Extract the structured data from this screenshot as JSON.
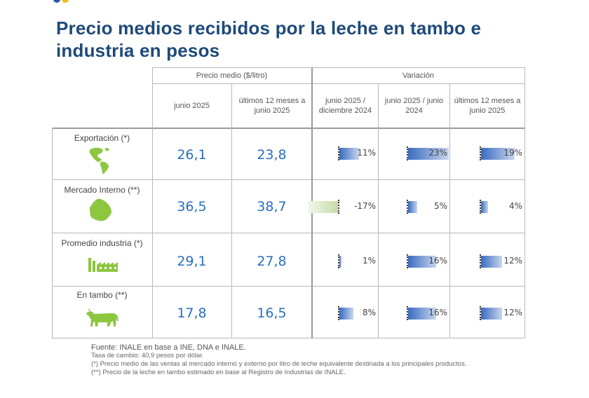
{
  "title": "Precio medios recibidos por la leche en tambo e industria en pesos",
  "header": {
    "group_price": "Precio medio ($/litro)",
    "group_variation": "Variación",
    "col_jun2025": "junio 2025",
    "col_last12": "últimos 12 meses a junio 2025",
    "col_var_dec": "junio 2025 / diciembre 2024",
    "col_var_jun": "junio 2025 / junio 2024",
    "col_var_12m": "últimos 12 meses a junio 2025"
  },
  "rows": [
    {
      "label": "Exportación (*)",
      "icon": "americas-map-icon",
      "jun2025": "26,1",
      "last12": "23,8",
      "var_dec": "11%",
      "var_jun": "23%",
      "var_12m": "19%"
    },
    {
      "label": "Mercado Interno (**)",
      "icon": "uruguay-map-icon",
      "jun2025": "36,5",
      "last12": "38,7",
      "var_dec": "-17%",
      "var_jun": "5%",
      "var_12m": "4%"
    },
    {
      "label": "Promedio industria (*)",
      "icon": "factory-icon",
      "jun2025": "29,1",
      "last12": "27,8",
      "var_dec": "1%",
      "var_jun": "16%",
      "var_12m": "12%"
    },
    {
      "label": "En tambo (**)",
      "icon": "cow-icon",
      "jun2025": "17,8",
      "last12": "16,5",
      "var_dec": "8%",
      "var_jun": "16%",
      "var_12m": "12%"
    }
  ],
  "notes": {
    "source": "Fuente: INALE en base a INE, DNA e INALE.",
    "exchange": "Tasa de cambio: 40,9 pesos por dólar.",
    "note1": "(*) Precio medio de las ventas al mercado interno y externo por litro de leche equivalente destinada a los principales productos.",
    "note2": "(**) Precio de la leche en tambo estimado en base al Registro de Industrias de INALE."
  },
  "colors": {
    "title": "#1e4a7a",
    "value": "#2a6fc0",
    "bar_pos": "#3a6bc0",
    "bar_neg": "#c6dba8",
    "icon_green": "#8dc63f"
  },
  "chart_data": {
    "type": "table",
    "title": "Precio medios recibidos por la leche en tambo e industria en pesos",
    "categories": [
      "Exportación (*)",
      "Mercado Interno (**)",
      "Promedio industria (*)",
      "En tambo (**)"
    ],
    "series": [
      {
        "name": "junio 2025",
        "unit": "$/litro",
        "values": [
          26.1,
          36.5,
          29.1,
          17.8
        ]
      },
      {
        "name": "últimos 12 meses a junio 2025",
        "unit": "$/litro",
        "values": [
          23.8,
          38.7,
          27.8,
          16.5
        ]
      },
      {
        "name": "Variación junio 2025 / diciembre 2024",
        "unit": "%",
        "values": [
          11,
          -17,
          1,
          8
        ]
      },
      {
        "name": "Variación junio 2025 / junio 2024",
        "unit": "%",
        "values": [
          23,
          5,
          16,
          16
        ]
      },
      {
        "name": "Variación últimos 12 meses a junio 2025",
        "unit": "%",
        "values": [
          19,
          4,
          12,
          12
        ]
      }
    ]
  }
}
